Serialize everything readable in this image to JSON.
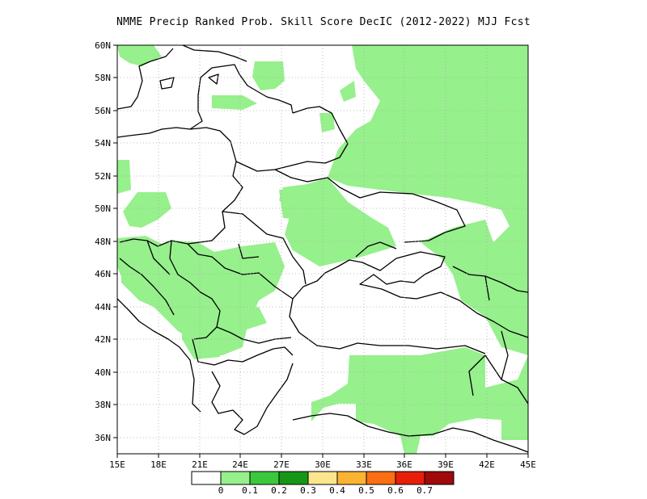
{
  "title": "NMME Precip Ranked Prob. Skill Score DecIC (2012-2022) MJJ Fcst",
  "map": {
    "lon_range": [
      15,
      45
    ],
    "lat_range": [
      35,
      60
    ],
    "x_ticks": [
      "15E",
      "18E",
      "21E",
      "24E",
      "27E",
      "30E",
      "33E",
      "36E",
      "39E",
      "42E",
      "45E"
    ],
    "y_ticks": [
      "60N",
      "58N",
      "56N",
      "54N",
      "52N",
      "50N",
      "48N",
      "46N",
      "44N",
      "42N",
      "40N",
      "38N",
      "36N"
    ],
    "gridlines": "dotted"
  },
  "colorbar": {
    "labels": [
      "0",
      "0.1",
      "0.2",
      "0.3",
      "0.4",
      "0.5",
      "0.6",
      "0.7"
    ],
    "colors": [
      "#ffffff",
      "#96f08c",
      "#3cc83c",
      "#169616",
      "#fae68c",
      "#fab432",
      "#fa6e14",
      "#e61e0a",
      "#a00a0a"
    ]
  }
}
